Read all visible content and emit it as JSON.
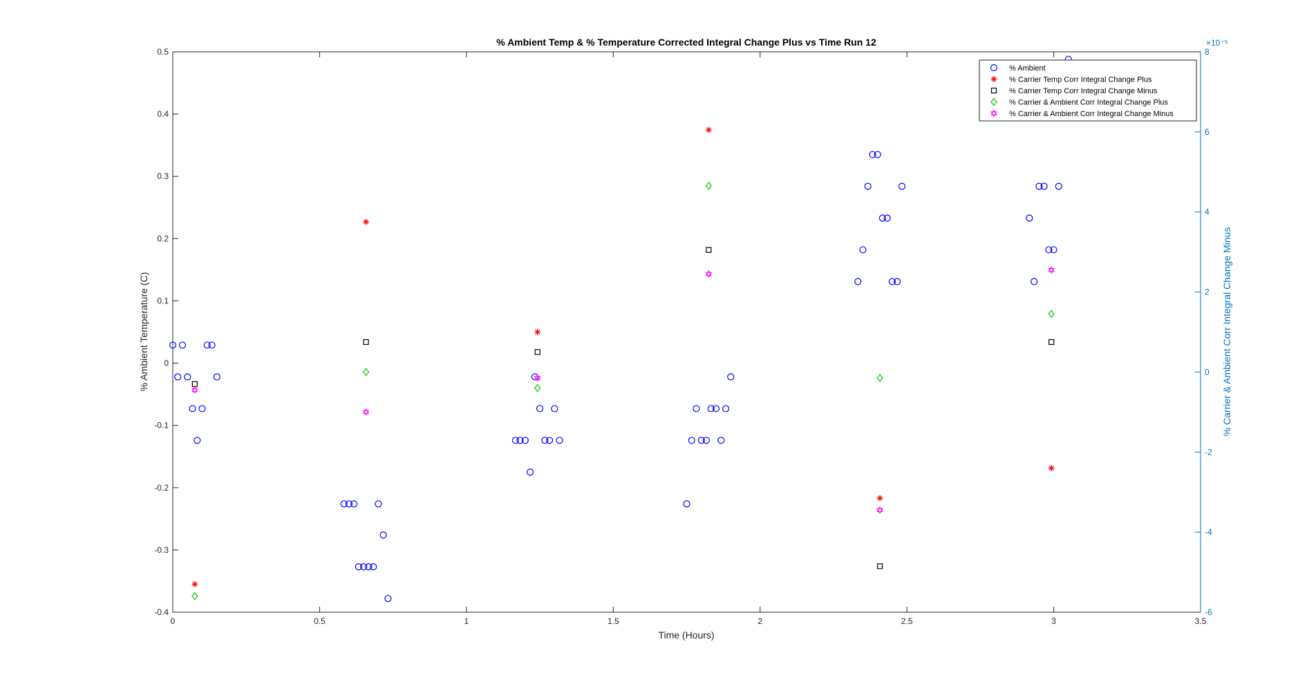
{
  "chart_data": {
    "type": "scatter",
    "title": "% Ambient Temp & % Temperature Corrected Integral Change Plus vs Time Run 12",
    "xlabel": "Time (Hours)",
    "ylabel": "% Ambient Temperature (C)",
    "y2label": "% Carrier & Ambient Corr Integral Change Minus",
    "y2_exponent_label": "×10⁻⁵",
    "xlim": [
      0,
      3.5
    ],
    "ylim": [
      -0.4,
      0.5
    ],
    "y2lim": [
      -6,
      8
    ],
    "y2_scale": 1e-05,
    "xticks": [
      "0",
      "0.5",
      "1",
      "1.5",
      "2",
      "2.5",
      "3",
      "3.5"
    ],
    "yticks": [
      "-0.4",
      "-0.3",
      "-0.2",
      "-0.1",
      "0",
      "0.1",
      "0.2",
      "0.3",
      "0.4",
      "0.5"
    ],
    "y2ticks": [
      "-6",
      "-4",
      "-2",
      "0",
      "2",
      "4",
      "6",
      "8"
    ],
    "legend_position": "top-right",
    "colors": {
      "ambient": "#0000ff",
      "carrier_plus": "#ff0000",
      "carrier_minus": "#000000",
      "carrier_ambient_plus": "#00cc00",
      "carrier_ambient_minus": "#ff00ff",
      "right_axis": "#0072bd"
    },
    "series": [
      {
        "name": "% Ambient",
        "axis": "left",
        "marker": "circle",
        "x": [
          0.0,
          0.017,
          0.033,
          0.05,
          0.067,
          0.083,
          0.1,
          0.117,
          0.133,
          0.15,
          0.583,
          0.6,
          0.617,
          0.633,
          0.65,
          0.667,
          0.683,
          0.7,
          0.717,
          0.733,
          1.167,
          1.183,
          1.2,
          1.217,
          1.233,
          1.25,
          1.267,
          1.283,
          1.3,
          1.317,
          1.75,
          1.767,
          1.783,
          1.8,
          1.817,
          1.833,
          1.85,
          1.867,
          1.883,
          1.9,
          2.333,
          2.35,
          2.367,
          2.383,
          2.4,
          2.417,
          2.433,
          2.45,
          2.467,
          2.483,
          2.917,
          2.933,
          2.95,
          2.967,
          2.983,
          3.0,
          3.017,
          3.05
        ],
        "y": [
          0.029,
          -0.022,
          0.029,
          -0.022,
          -0.073,
          -0.124,
          -0.073,
          0.029,
          0.029,
          -0.022,
          -0.226,
          -0.226,
          -0.226,
          -0.327,
          -0.327,
          -0.327,
          -0.327,
          -0.226,
          -0.276,
          -0.378,
          -0.124,
          -0.124,
          -0.124,
          -0.175,
          -0.022,
          -0.073,
          -0.124,
          -0.124,
          -0.073,
          -0.124,
          -0.226,
          -0.124,
          -0.073,
          -0.124,
          -0.124,
          -0.073,
          -0.073,
          -0.124,
          -0.073,
          -0.022,
          0.131,
          0.182,
          0.284,
          0.335,
          0.335,
          0.233,
          0.233,
          0.131,
          0.131,
          0.284,
          0.233,
          0.131,
          0.284,
          0.284,
          0.182,
          0.182,
          0.284,
          0.488
        ]
      },
      {
        "name": "% Carrier Temp Corr Integral Change Plus",
        "axis": "right",
        "marker": "asterisk",
        "x": [
          0.075,
          0.658,
          1.242,
          1.825,
          2.408,
          2.992
        ],
        "y": [
          -5.3,
          3.75,
          1.0,
          6.05,
          -3.15,
          -2.4
        ]
      },
      {
        "name": "% Carrier Temp Corr Integral Change Minus",
        "axis": "right",
        "marker": "square",
        "x": [
          0.075,
          0.658,
          1.242,
          1.825,
          2.408,
          2.992
        ],
        "y": [
          -0.3,
          0.75,
          0.5,
          3.05,
          -4.85,
          0.75
        ]
      },
      {
        "name": "% Carrier & Ambient Corr Integral Change Plus",
        "axis": "right",
        "marker": "diamond",
        "x": [
          0.075,
          0.658,
          1.242,
          1.825,
          2.408,
          2.992
        ],
        "y": [
          -5.6,
          0.0,
          -0.4,
          4.65,
          -0.15,
          1.45
        ]
      },
      {
        "name": "% Carrier & Ambient Corr Integral Change Minus",
        "axis": "right",
        "marker": "hexagram",
        "x": [
          0.075,
          0.658,
          1.242,
          1.825,
          2.408,
          2.992
        ],
        "y": [
          -0.45,
          -1.0,
          -0.15,
          2.45,
          -3.45,
          2.55
        ]
      }
    ]
  }
}
